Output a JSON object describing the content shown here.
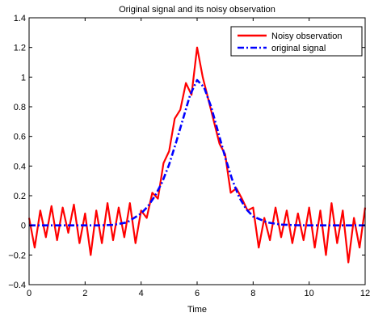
{
  "chart_data": {
    "type": "line",
    "title": "Original signal and its noisy observation",
    "xlabel": "Time",
    "ylabel": "",
    "xlim": [
      0,
      12
    ],
    "ylim": [
      -0.4,
      1.4
    ],
    "grid": false,
    "legend_position": "top-right",
    "x_ticks": [
      "0",
      "2",
      "4",
      "6",
      "8",
      "10",
      "12"
    ],
    "y_ticks": [
      "−0.4",
      "−0.2",
      "0",
      "0.2",
      "0.4",
      "0.6",
      "0.8",
      "1",
      "1.2",
      "1.4"
    ],
    "series": [
      {
        "name": "Noisy observation",
        "color": "#ff0000",
        "style": "solid",
        "x": [
          0.0,
          0.2,
          0.4,
          0.6,
          0.8,
          1.0,
          1.2,
          1.4,
          1.6,
          1.8,
          2.0,
          2.2,
          2.4,
          2.6,
          2.8,
          3.0,
          3.2,
          3.4,
          3.6,
          3.8,
          4.0,
          4.2,
          4.4,
          4.6,
          4.8,
          5.0,
          5.2,
          5.4,
          5.6,
          5.8,
          6.0,
          6.2,
          6.4,
          6.6,
          6.8,
          7.0,
          7.2,
          7.4,
          7.6,
          7.8,
          8.0,
          8.2,
          8.4,
          8.6,
          8.8,
          9.0,
          9.2,
          9.4,
          9.6,
          9.8,
          10.0,
          10.2,
          10.4,
          10.6,
          10.8,
          11.0,
          11.2,
          11.4,
          11.6,
          11.8,
          12.0
        ],
        "y": [
          0.05,
          -0.15,
          0.1,
          -0.08,
          0.13,
          -0.1,
          0.12,
          -0.05,
          0.14,
          -0.12,
          0.08,
          -0.2,
          0.1,
          -0.12,
          0.15,
          -0.1,
          0.12,
          -0.08,
          0.15,
          -0.12,
          0.1,
          0.05,
          0.22,
          0.18,
          0.42,
          0.5,
          0.72,
          0.78,
          0.96,
          0.88,
          1.2,
          1.0,
          0.85,
          0.7,
          0.55,
          0.48,
          0.22,
          0.25,
          0.18,
          0.1,
          0.12,
          -0.15,
          0.05,
          -0.1,
          0.12,
          -0.08,
          0.1,
          -0.12,
          0.08,
          -0.1,
          0.12,
          -0.15,
          0.1,
          -0.2,
          0.15,
          -0.12,
          0.1,
          -0.25,
          0.05,
          -0.15,
          0.12
        ]
      },
      {
        "name": "original signal",
        "color": "#0000ff",
        "style": "dash-dot",
        "x": [
          0,
          0.5,
          1,
          1.5,
          2,
          2.5,
          3,
          3.5,
          4,
          4.25,
          4.5,
          4.75,
          5,
          5.25,
          5.5,
          5.75,
          6,
          6.25,
          6.5,
          6.75,
          7,
          7.25,
          7.5,
          7.75,
          8,
          8.5,
          9,
          9.5,
          10,
          10.5,
          11,
          11.5,
          12
        ],
        "y": [
          0,
          0,
          0,
          0,
          0,
          0,
          0.003,
          0.02,
          0.08,
          0.13,
          0.2,
          0.29,
          0.41,
          0.56,
          0.72,
          0.88,
          0.98,
          0.93,
          0.8,
          0.63,
          0.46,
          0.31,
          0.19,
          0.11,
          0.06,
          0.02,
          0.005,
          0.001,
          0,
          0,
          0,
          0,
          0
        ]
      }
    ]
  }
}
